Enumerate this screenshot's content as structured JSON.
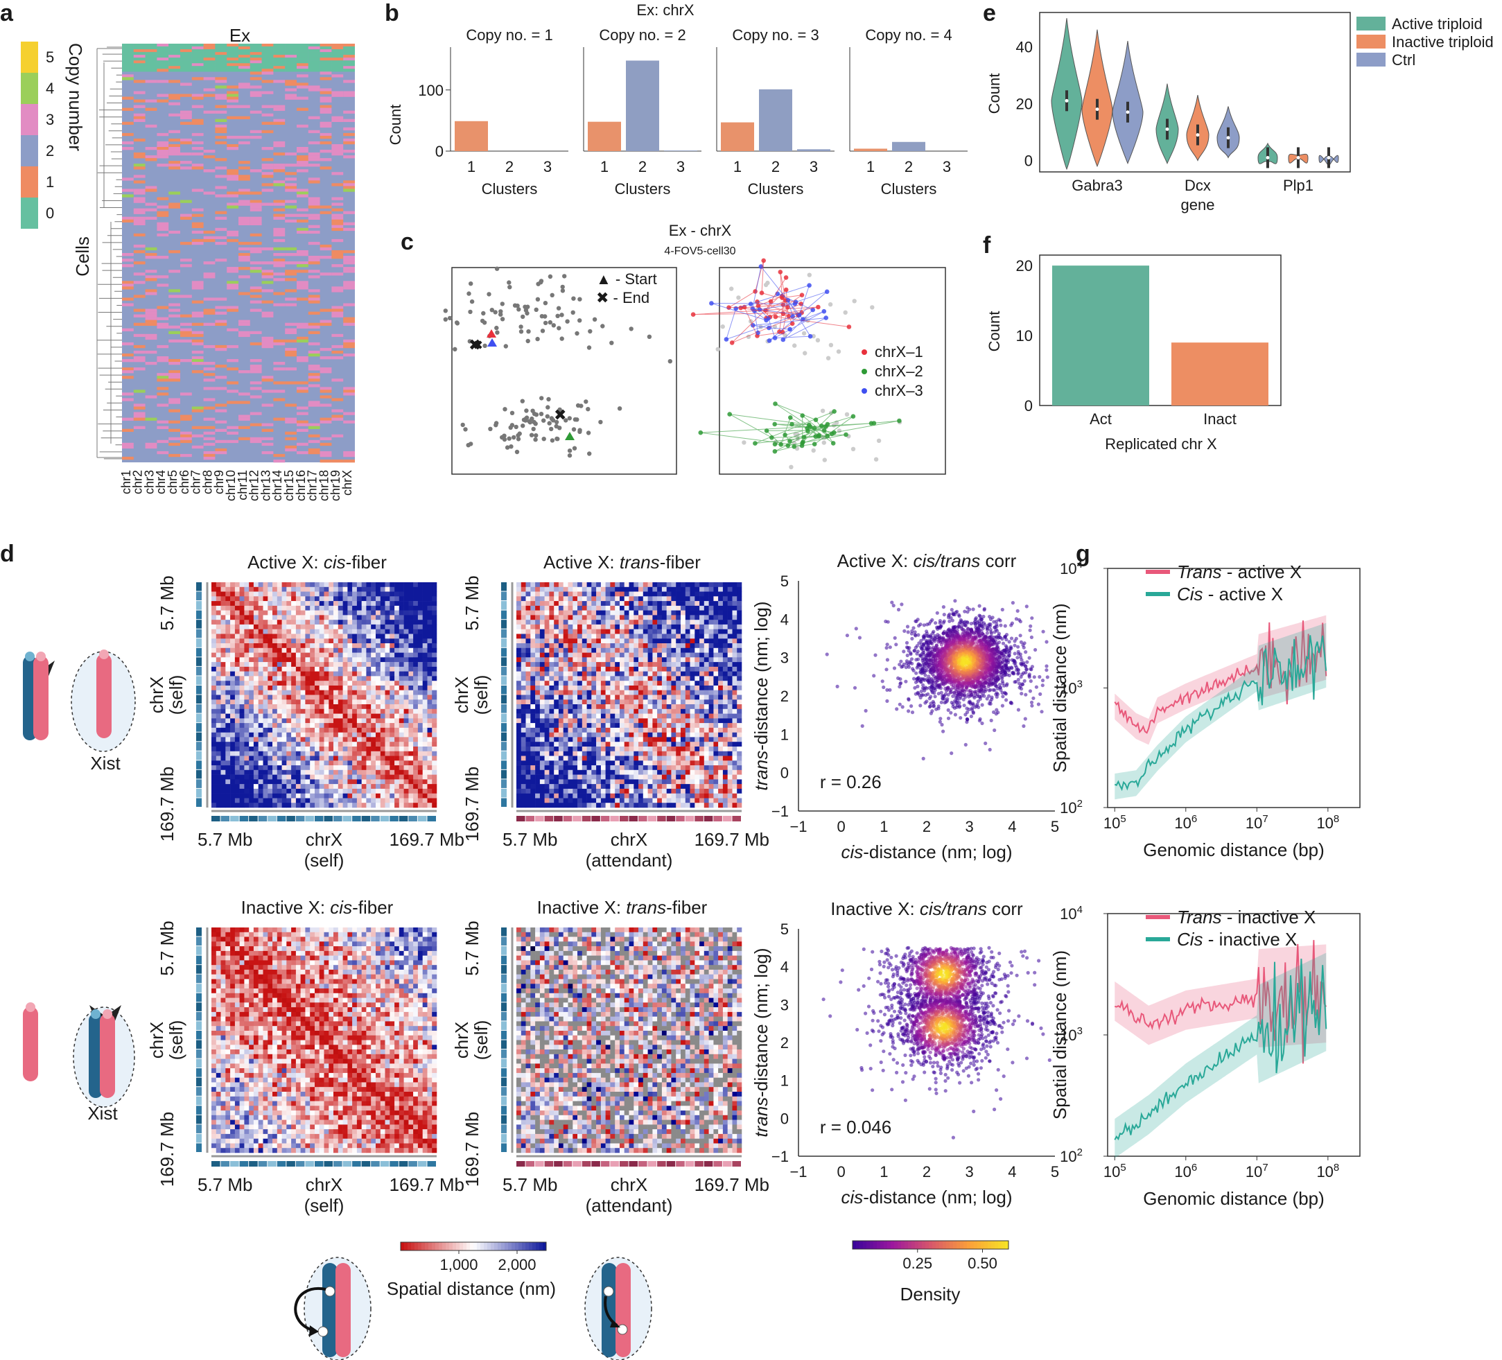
{
  "panel_labels": {
    "a": "a",
    "b": "b",
    "c": "c",
    "d": "d",
    "e": "e",
    "f": "f",
    "g": "g"
  },
  "colors": {
    "cluster1": "#e8926b",
    "cluster2": "#8f9ec2",
    "active": "#63b19a",
    "inactive": "#ed8e63",
    "ctrl": "#8d9dc7",
    "trans_line": "#e8587a",
    "cis_line": "#29a898",
    "density_low": "#3b049a",
    "density_high": "#f7e225",
    "heat_near": "#dd1111",
    "heat_far": "#101899"
  },
  "panel_a": {
    "title": "Ex",
    "ylabel": "Cells",
    "colorbar_label": "Copy number",
    "colorbar_levels": [
      {
        "label": "5",
        "color": "#f5d02f"
      },
      {
        "label": "4",
        "color": "#9bcf5a"
      },
      {
        "label": "3",
        "color": "#e28cc3"
      },
      {
        "label": "2",
        "color": "#8d9dc7"
      },
      {
        "label": "1",
        "color": "#ef8b62"
      },
      {
        "label": "0",
        "color": "#65c0a0"
      }
    ],
    "chromosomes": [
      "chr1",
      "chr2",
      "chr3",
      "chr4",
      "chr5",
      "chr6",
      "chr7",
      "chr8",
      "chr9",
      "chr10",
      "chr11",
      "chr12",
      "chr13",
      "chr14",
      "chr15",
      "chr16",
      "chr17",
      "chr18",
      "chr19",
      "chrX"
    ]
  },
  "chart_data": [
    {
      "panel": "b",
      "type": "bar",
      "title": "Ex: chrX",
      "xlabel": "Clusters",
      "ylabel": "Count",
      "ylim": [
        0,
        170
      ],
      "yticks": [
        "0",
        "100"
      ],
      "categories": [
        "1",
        "2",
        "3"
      ],
      "facets": [
        {
          "title": "Copy no. = 1",
          "values": [
            49,
            0,
            0
          ]
        },
        {
          "title": "Copy no. = 2",
          "values": [
            48,
            148,
            1
          ]
        },
        {
          "title": "Copy no. = 3",
          "values": [
            47,
            101,
            3
          ]
        },
        {
          "title": "Copy no. = 4",
          "values": [
            4,
            15,
            0
          ]
        }
      ]
    },
    {
      "panel": "c",
      "type": "scatter",
      "title": "Ex - chrX",
      "subtitle": "4-FOV5-cell30",
      "marker_legend": [
        "▲ - Start",
        "✖ - End"
      ],
      "series_legend": [
        "chrX–1",
        "chrX–2",
        "chrX–3"
      ]
    },
    {
      "panel": "e",
      "type": "violin",
      "xlabel": "gene",
      "ylabel": "Count",
      "ylim": [
        -4,
        52
      ],
      "yticks": [
        "0",
        "20",
        "40"
      ],
      "genes": [
        "Gabra3",
        "Dcx",
        "Plp1"
      ],
      "series": [
        {
          "name": "Active triploid",
          "medians": [
            21,
            11,
            1
          ]
        },
        {
          "name": "Inactive triploid",
          "medians": [
            18,
            9,
            1
          ]
        },
        {
          "name": "Ctrl",
          "medians": [
            17,
            8,
            1
          ]
        }
      ]
    },
    {
      "panel": "f",
      "type": "bar",
      "xlabel": "Replicated chr X",
      "ylabel": "Count",
      "ylim": [
        0,
        21.5
      ],
      "yticks": [
        "0",
        "10",
        "20"
      ],
      "categories": [
        "Act",
        "Inact"
      ],
      "values": [
        20,
        9
      ]
    },
    {
      "panel": "d",
      "type": "heatmap",
      "maps": [
        {
          "title_pre": "Active X: ",
          "title_it": "cis",
          "title_post": "-fiber",
          "x_mid": "chrX",
          "x_sub": "(self)",
          "mode": "cis_active"
        },
        {
          "title_pre": "Active X: ",
          "title_it": "trans",
          "title_post": "-fiber",
          "x_mid": "chrX",
          "x_sub": "(attendant)",
          "mode": "trans_active"
        },
        {
          "title_pre": "Inactive X: ",
          "title_it": "cis",
          "title_post": "-fiber",
          "x_mid": "chrX",
          "x_sub": "(self)",
          "mode": "cis_inactive"
        },
        {
          "title_pre": "Inactive X: ",
          "title_it": "trans",
          "title_post": "-fiber",
          "x_mid": "chrX",
          "x_sub": "(attendant)",
          "mode": "trans_inactive"
        }
      ],
      "y_top": "5.7 Mb",
      "y_mid1": "chrX",
      "y_mid2": "(self)",
      "y_bot": "169.7 Mb",
      "x_left": "5.7 Mb",
      "x_right": "169.7 Mb",
      "colorbar": {
        "label": "Spatial distance (nm)",
        "ticks": [
          "1,000",
          "2,000"
        ],
        "range": [
          0,
          2500
        ]
      }
    },
    {
      "panel": "d",
      "type": "scatter",
      "xlabel_it": "cis",
      "xlabel_rest": "-distance (nm; log)",
      "ylabel_it": "trans",
      "ylabel_rest": "-distance (nm; log)",
      "xlim": [
        -1,
        5
      ],
      "ylim": [
        -1,
        5
      ],
      "xticks": [
        "−1",
        "0",
        "1",
        "2",
        "3",
        "4",
        "5"
      ],
      "yticks": [
        "−1",
        "0",
        "1",
        "2",
        "3",
        "4",
        "5"
      ],
      "plots": [
        {
          "title_pre": "Active X: ",
          "title_it": "cis/trans",
          "title_post": " corr",
          "r": "0.26",
          "centers": [
            [
              2.9,
              2.9
            ]
          ]
        },
        {
          "title_pre": "Inactive X: ",
          "title_it": "cis/trans",
          "title_post": " corr",
          "r": "0.046",
          "centers": [
            [
              2.4,
              3.8
            ],
            [
              2.4,
              2.4
            ]
          ]
        }
      ],
      "colorbar": {
        "label": "Density",
        "ticks": [
          "0.25",
          "0.50"
        ],
        "range": [
          0,
          0.6
        ]
      }
    },
    {
      "panel": "g",
      "type": "line",
      "xlabel": "Genomic distance (bp)",
      "ylabel": "Spatial distance (nm)",
      "xscale": "log",
      "yscale": "log",
      "xlim": [
        100000.0,
        200000000.0
      ],
      "ylim": [
        100,
        10000
      ],
      "xticks": [
        "5",
        "6",
        "7",
        "8"
      ],
      "yticks": [
        "2",
        "3",
        "4"
      ],
      "plots": [
        {
          "legend": [
            {
              "it": "Trans",
              "rest": " - active X"
            },
            {
              "it": "Cis",
              "rest": " - active X"
            }
          ],
          "trans": [
            [
              100000.0,
              700
            ],
            [
              200000.0,
              480
            ],
            [
              300000.0,
              430
            ],
            [
              400000.0,
              650
            ],
            [
              1000000.0,
              850
            ],
            [
              10000000.0,
              1500
            ],
            [
              100000000.0,
              2200
            ]
          ],
          "cis": [
            [
              100000.0,
              150
            ],
            [
              200000.0,
              160
            ],
            [
              400000.0,
              260
            ],
            [
              1000000.0,
              450
            ],
            [
              10000000.0,
              1200
            ],
            [
              100000000.0,
              1900
            ]
          ]
        },
        {
          "legend": [
            {
              "it": "Trans",
              "rest": " - inactive X"
            },
            {
              "it": "Cis",
              "rest": " - inactive X"
            }
          ],
          "trans": [
            [
              100000.0,
              1900
            ],
            [
              300000.0,
              1200
            ],
            [
              1000000.0,
              1600
            ],
            [
              10000000.0,
              2000
            ],
            [
              100000000.0,
              2200
            ]
          ],
          "cis": [
            [
              100000.0,
              140
            ],
            [
              300000.0,
              220
            ],
            [
              1000000.0,
              400
            ],
            [
              10000000.0,
              1000
            ],
            [
              100000000.0,
              1900
            ]
          ]
        }
      ]
    }
  ],
  "schematic": {
    "xist_label": "Xist"
  }
}
